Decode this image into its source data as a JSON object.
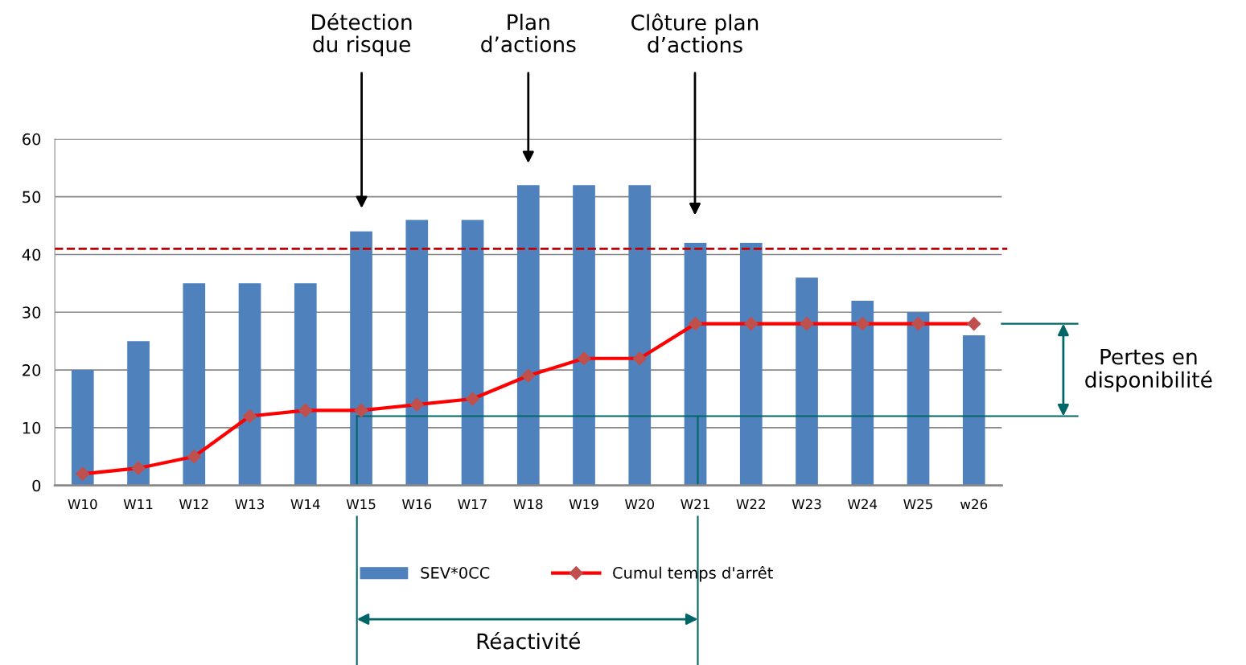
{
  "chart_data": {
    "type": "bar",
    "categories": [
      "W10",
      "W11",
      "W12",
      "W13",
      "W14",
      "W15",
      "W16",
      "W17",
      "W18",
      "W19",
      "W20",
      "W21",
      "W22",
      "W23",
      "W24",
      "W25",
      "w26"
    ],
    "series": [
      {
        "name": "SEV*0CC",
        "color": "#4f81bd",
        "values": [
          20,
          25,
          35,
          35,
          35,
          44,
          46,
          46,
          52,
          52,
          52,
          42,
          42,
          36,
          32,
          30,
          26
        ]
      },
      {
        "name": "Cumul temps d'arrêt",
        "type": "line",
        "color": "#ff0000",
        "marker": "diamond",
        "values": [
          2,
          3,
          5,
          12,
          13,
          13,
          14,
          15,
          19,
          22,
          22,
          28,
          28,
          28,
          28,
          28,
          28
        ]
      }
    ],
    "ylim": [
      0,
      60
    ],
    "yticks": [
      0,
      10,
      20,
      30,
      40,
      50,
      60
    ],
    "grid": "y",
    "legend": "bottom",
    "ref_lines": [
      {
        "axis": "y",
        "value": 41,
        "color": "#c00000",
        "line_style": "dashed"
      }
    ],
    "annotations": [
      "Détection\ndu risque",
      "Plan\nd’actions",
      "Clôture plan\nd’actions",
      "Pertes en\ndisponibilité",
      "Réactivité"
    ]
  }
}
